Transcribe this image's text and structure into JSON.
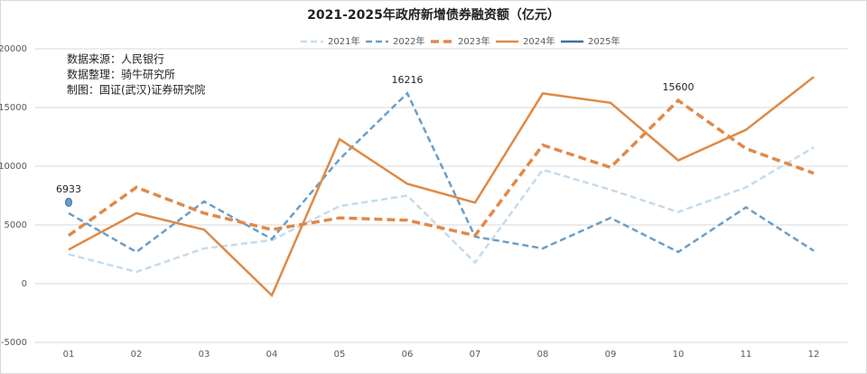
{
  "chart_data": {
    "type": "line",
    "title": "2021-2025年政府新增债券融资额（亿元）",
    "annotations": [
      "数据来源：人民银行",
      "数据整理：骑牛研究所",
      "制图：国证(武汉)证券研究院"
    ],
    "categories": [
      "01",
      "02",
      "03",
      "04",
      "05",
      "06",
      "07",
      "08",
      "09",
      "10",
      "11",
      "12"
    ],
    "ylim": [
      -5000,
      20000
    ],
    "yticks": [
      -5000,
      0,
      5000,
      10000,
      15000,
      20000
    ],
    "grid": true,
    "legend": "top",
    "series": [
      {
        "name": "2021年",
        "color": "#c6dbea",
        "style": "dashed",
        "width": 2.5,
        "values": [
          2500,
          1000,
          3000,
          3700,
          6600,
          7500,
          1800,
          9700,
          8000,
          6100,
          8200,
          11600
        ]
      },
      {
        "name": "2022年",
        "color": "#6a9ec8",
        "style": "dashed",
        "width": 2.5,
        "values": [
          6000,
          2700,
          7000,
          3800,
          10600,
          16216,
          4000,
          3000,
          5600,
          2700,
          6500,
          2800
        ],
        "value_labels": [
          null,
          null,
          null,
          null,
          null,
          "16216",
          null,
          null,
          null,
          null,
          null,
          null
        ]
      },
      {
        "name": "2023年",
        "color": "#e0894a",
        "style": "dashed",
        "width": 3.5,
        "values": [
          4100,
          8200,
          6000,
          4600,
          5600,
          5400,
          4100,
          11800,
          9900,
          15600,
          11500,
          9400
        ],
        "value_labels": [
          null,
          null,
          null,
          null,
          null,
          null,
          null,
          null,
          null,
          "15600",
          null,
          null
        ]
      },
      {
        "name": "2024年",
        "color": "#df8a45",
        "style": "solid",
        "width": 2.5,
        "values": [
          2900,
          6000,
          4600,
          -1000,
          12300,
          8500,
          6900,
          16200,
          15400,
          10500,
          13100,
          17600
        ]
      },
      {
        "name": "2025年",
        "color": "#3d6fa3",
        "style": "solid",
        "width": 2.5,
        "values": [
          6933,
          null,
          null,
          null,
          null,
          null,
          null,
          null,
          null,
          null,
          null,
          null
        ],
        "value_labels": [
          "6933",
          null,
          null,
          null,
          null,
          null,
          null,
          null,
          null,
          null,
          null,
          null
        ]
      }
    ]
  }
}
